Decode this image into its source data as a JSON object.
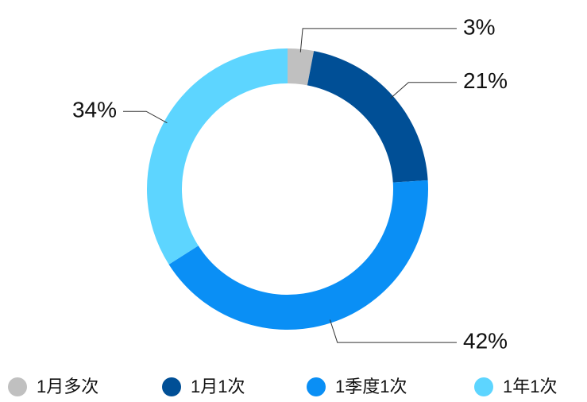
{
  "chart_data": {
    "type": "donut",
    "categories": [
      "1月多次",
      "1月1次",
      "1季度1次",
      "1年1次"
    ],
    "values": [
      3,
      21,
      42,
      34
    ],
    "value_labels": [
      "3%",
      "21%",
      "42%",
      "34%"
    ],
    "colors": [
      "#c0c0c0",
      "#004f96",
      "#0a8ff5",
      "#5dd5ff"
    ],
    "legend": "bottom"
  }
}
